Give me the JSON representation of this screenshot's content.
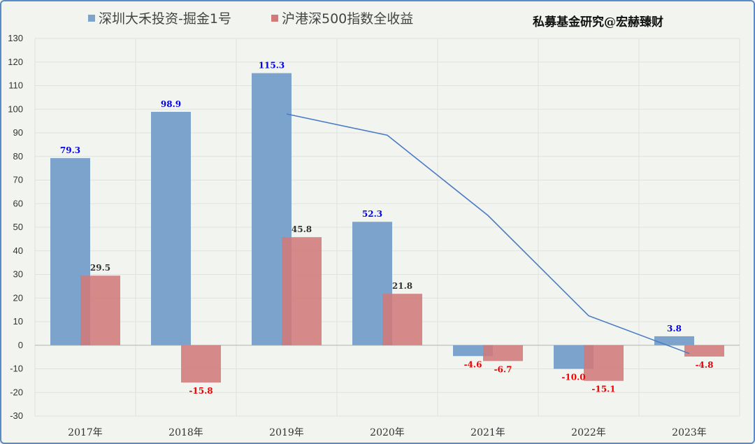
{
  "watermark": "私募基金研究@宏赫臻财",
  "chart_data": {
    "type": "bar",
    "categories": [
      "2017年",
      "2018年",
      "2019年",
      "2020年",
      "2021年",
      "2022年",
      "2023年"
    ],
    "series": [
      {
        "name": "深圳大禾投资-掘金1号",
        "color": "#7ba3cc",
        "values": [
          79.3,
          98.9,
          115.3,
          52.3,
          -4.6,
          -10.0,
          3.8
        ],
        "labels": [
          "79.3",
          "98.9",
          "115.3",
          "52.3",
          "-4.6",
          "-10.0",
          "3.8"
        ],
        "label_color_positive": "#0000ee",
        "label_color_negative": "#ee0000"
      },
      {
        "name": "沪港深500指数全收益",
        "color": "#d27a7a",
        "values": [
          29.5,
          -15.8,
          45.8,
          21.8,
          -6.7,
          -15.1,
          -4.8
        ],
        "labels": [
          "29.5",
          "-15.8",
          "45.8",
          "21.8",
          "-6.7",
          "-15.1",
          "-4.8"
        ],
        "label_color_positive": "#333333",
        "label_color_negative": "#ee0000"
      }
    ],
    "trend_line": {
      "color": "#4a7bc4",
      "x": [
        "2019年",
        "2020年",
        "2021年",
        "2022年",
        "2023年"
      ],
      "y": [
        98,
        89,
        55,
        12.5,
        -3.5
      ]
    },
    "ylim": [
      -30,
      130
    ],
    "yticks": [
      130,
      120,
      110,
      100,
      90,
      80,
      70,
      60,
      50,
      40,
      30,
      20,
      10,
      0,
      -10,
      -20,
      -30
    ],
    "grid": true,
    "legend_position": "top-left",
    "title": "",
    "xlabel": "",
    "ylabel": ""
  }
}
